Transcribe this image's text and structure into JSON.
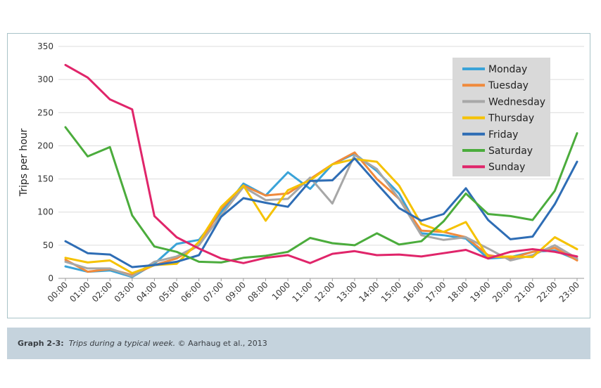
{
  "chart_data": {
    "type": "line",
    "title": "",
    "xlabel": "",
    "ylabel": "Trips per hour",
    "ylim": [
      0,
      350
    ],
    "yticks": [
      "0",
      "50",
      "100",
      "150",
      "200",
      "250",
      "300",
      "350"
    ],
    "grid": true,
    "legend_position": "top-right",
    "categories": [
      "00:00",
      "01:00",
      "02:00",
      "03:00",
      "04:00",
      "05:00",
      "06:00",
      "07:00",
      "09:00",
      "08:00",
      "1000",
      "11:00",
      "12:00",
      "13:00",
      "14:00",
      "15:00",
      "16:00",
      "17:00",
      "18:00",
      "19:00",
      "20:00",
      "21:00",
      "22:00",
      "23:00"
    ],
    "series": [
      {
        "name": "Monday",
        "color": "#3aa3d8",
        "values": [
          18,
          10,
          12,
          2,
          22,
          52,
          58,
          100,
          143,
          125,
          160,
          135,
          172,
          188,
          162,
          128,
          68,
          65,
          60,
          30,
          32,
          40,
          42,
          28
        ]
      },
      {
        "name": "Tuesday",
        "color": "#f08a3c",
        "values": [
          28,
          10,
          14,
          5,
          20,
          30,
          50,
          105,
          140,
          125,
          128,
          150,
          172,
          190,
          150,
          120,
          72,
          70,
          62,
          35,
          30,
          40,
          46,
          27
        ]
      },
      {
        "name": "Wednesday",
        "color": "#a7a7a7",
        "values": [
          25,
          15,
          15,
          3,
          25,
          33,
          50,
          95,
          138,
          118,
          120,
          152,
          113,
          186,
          165,
          120,
          65,
          58,
          62,
          45,
          27,
          35,
          50,
          30
        ]
      },
      {
        "name": "Thursday",
        "color": "#f5c200",
        "values": [
          31,
          24,
          27,
          8,
          20,
          22,
          55,
          108,
          140,
          87,
          133,
          148,
          172,
          180,
          176,
          140,
          82,
          70,
          85,
          32,
          33,
          32,
          62,
          44
        ]
      },
      {
        "name": "Friday",
        "color": "#2e6db5",
        "values": [
          56,
          38,
          36,
          17,
          20,
          25,
          35,
          93,
          121,
          114,
          108,
          147,
          148,
          181,
          143,
          106,
          87,
          97,
          136,
          88,
          59,
          63,
          112,
          176
        ]
      },
      {
        "name": "Saturday",
        "color": "#4bac3c",
        "values": [
          228,
          184,
          198,
          95,
          48,
          40,
          25,
          24,
          31,
          34,
          40,
          61,
          53,
          50,
          68,
          51,
          56,
          86,
          128,
          97,
          94,
          88,
          132,
          219
        ]
      },
      {
        "name": "Sunday",
        "color": "#e0256a",
        "values": [
          322,
          303,
          270,
          255,
          94,
          62,
          45,
          30,
          23,
          31,
          35,
          23,
          37,
          41,
          35,
          36,
          33,
          38,
          43,
          30,
          40,
          44,
          40,
          33
        ]
      }
    ]
  },
  "caption": {
    "label": "Graph 2-3:",
    "title": "Trips during a typical week.",
    "credit": "© Aarhaug et al., 2013"
  }
}
